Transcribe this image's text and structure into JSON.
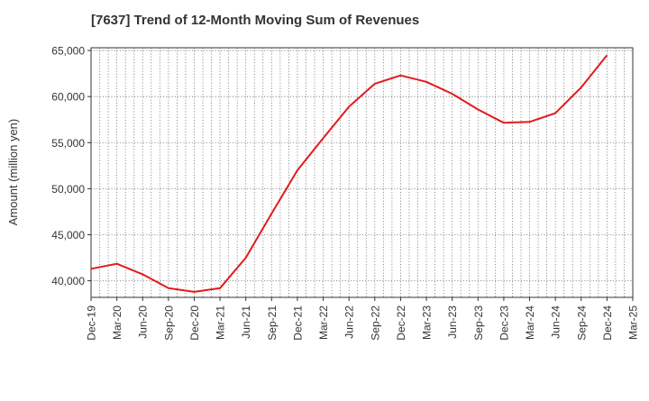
{
  "chart_data": {
    "type": "line",
    "title": "[7637]  Trend of 12-Month Moving Sum of Revenues",
    "xlabel": "",
    "ylabel": "Amount (million yen)",
    "categories": [
      "Dec-19",
      "Mar-20",
      "Jun-20",
      "Sep-20",
      "Dec-20",
      "Mar-21",
      "Jun-21",
      "Sep-21",
      "Dec-21",
      "Mar-22",
      "Jun-22",
      "Sep-22",
      "Dec-22",
      "Mar-23",
      "Jun-23",
      "Sep-23",
      "Dec-23",
      "Mar-24",
      "Jun-24",
      "Sep-24",
      "Dec-24",
      "Mar-25"
    ],
    "series": [
      {
        "values": [
          41300,
          41850,
          40700,
          39200,
          38800,
          39200,
          42500,
          47300,
          52000,
          55500,
          58900,
          61400,
          62300,
          61600,
          60300,
          58600,
          57150,
          57250,
          58200,
          61000,
          64500,
          null
        ],
        "color": "#e31a1c"
      }
    ],
    "ylim": [
      38200,
      65300
    ],
    "yticks": [
      40000,
      45000,
      50000,
      55000,
      60000,
      65000
    ],
    "ytick_labels": [
      "40,000",
      "45,000",
      "50,000",
      "55,000",
      "60,000",
      "65,000"
    ],
    "grid": true,
    "grid_style": "dotted"
  }
}
